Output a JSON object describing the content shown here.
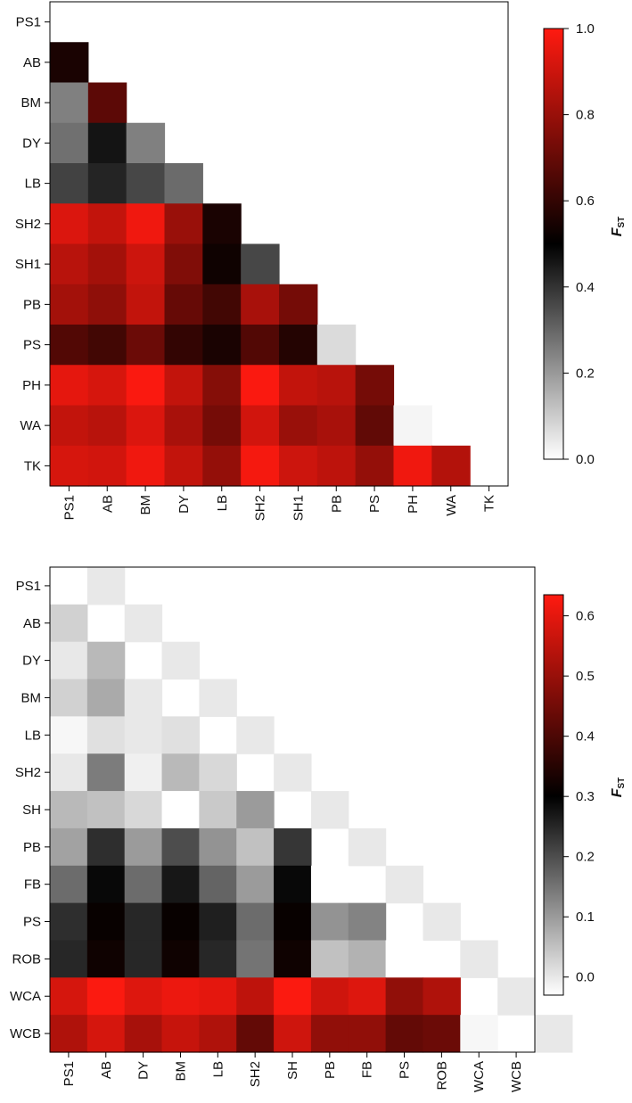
{
  "chart_data": [
    {
      "type": "heatmap",
      "legend_title": "F",
      "legend_subscript": "ST",
      "categories": [
        "PS1",
        "AB",
        "BM",
        "DY",
        "LB",
        "SH2",
        "SH1",
        "PB",
        "PS",
        "PH",
        "WA",
        "TK"
      ],
      "scale_range": [
        0.0,
        1.0
      ],
      "scale_ticks": [
        "0.0",
        "0.2",
        "0.4",
        "0.6",
        "0.8",
        "1.0"
      ],
      "scale_tick_values": [
        0.0,
        0.2,
        0.4,
        0.6,
        0.8,
        1.0
      ],
      "colorscale": [
        "#ffffff",
        "#000000",
        "#ff1a10"
      ],
      "scale_midpoint": 0.5,
      "lower_triangle": [
        [
          0.55
        ],
        [
          0.25,
          0.68
        ],
        [
          0.28,
          0.46,
          0.25
        ],
        [
          0.37,
          0.43,
          0.36,
          0.29
        ],
        [
          0.93,
          0.88,
          0.97,
          0.8,
          0.55
        ],
        [
          0.86,
          0.82,
          0.9,
          0.75,
          0.53,
          0.36
        ],
        [
          0.82,
          0.78,
          0.88,
          0.7,
          0.63,
          0.83,
          0.73
        ],
        [
          0.66,
          0.63,
          0.71,
          0.6,
          0.55,
          0.66,
          0.57,
          0.07
        ],
        [
          0.95,
          0.92,
          0.99,
          0.88,
          0.76,
          0.99,
          0.88,
          0.86,
          0.73
        ],
        [
          0.88,
          0.86,
          0.93,
          0.83,
          0.73,
          0.91,
          0.8,
          0.83,
          0.69,
          0.02
        ],
        [
          0.92,
          0.91,
          0.97,
          0.88,
          0.79,
          0.98,
          0.9,
          0.87,
          0.79,
          0.97,
          0.85
        ]
      ]
    },
    {
      "type": "heatmap",
      "legend_title": "F",
      "legend_subscript": "ST",
      "categories": [
        "PS1",
        "AB",
        "DY",
        "BM",
        "LB",
        "SH2",
        "SH",
        "PB",
        "FB",
        "PS",
        "ROB",
        "WCA",
        "WCB"
      ],
      "scale_range": [
        -0.03,
        0.635
      ],
      "scale_ticks": [
        "0.0",
        "0.1",
        "0.2",
        "0.3",
        "0.4",
        "0.5",
        "0.6"
      ],
      "scale_tick_values": [
        0.0,
        0.1,
        0.2,
        0.3,
        0.4,
        0.5,
        0.6
      ],
      "colorscale": [
        "#ffffff",
        "#000000",
        "#ff1a10"
      ],
      "scale_midpoint": 0.3,
      "diagonal": [
        0.0,
        0.0,
        0.0,
        0.0,
        0.0,
        0.0,
        0.0,
        0.0,
        0.0,
        0.0,
        0.0,
        0.0,
        0.0
      ],
      "lower_triangle": [
        [
          0.03
        ],
        [
          0.0,
          0.06
        ],
        [
          0.03,
          0.08,
          0.0
        ],
        [
          -0.02,
          0.01,
          0.0,
          0.01
        ],
        [
          0.0,
          0.14,
          -0.01,
          0.06,
          0.02
        ],
        [
          0.06,
          0.05,
          0.02,
          -0.03,
          0.04,
          0.1
        ],
        [
          0.09,
          0.24,
          0.1,
          0.2,
          0.11,
          0.05,
          0.23
        ],
        [
          0.16,
          0.29,
          0.16,
          0.27,
          0.17,
          0.1,
          0.29,
          -0.03
        ],
        [
          0.24,
          0.31,
          0.25,
          0.31,
          0.26,
          0.16,
          0.31,
          0.11,
          0.13
        ],
        [
          0.25,
          0.32,
          0.25,
          0.32,
          0.25,
          0.15,
          0.32,
          0.05,
          0.07,
          -0.03
        ],
        [
          0.58,
          0.63,
          0.59,
          0.61,
          0.6,
          0.55,
          0.63,
          0.57,
          0.59,
          0.49,
          0.53
        ],
        [
          0.53,
          0.58,
          0.52,
          0.56,
          0.53,
          0.43,
          0.57,
          0.49,
          0.49,
          0.43,
          0.44,
          -0.02
        ]
      ]
    }
  ]
}
